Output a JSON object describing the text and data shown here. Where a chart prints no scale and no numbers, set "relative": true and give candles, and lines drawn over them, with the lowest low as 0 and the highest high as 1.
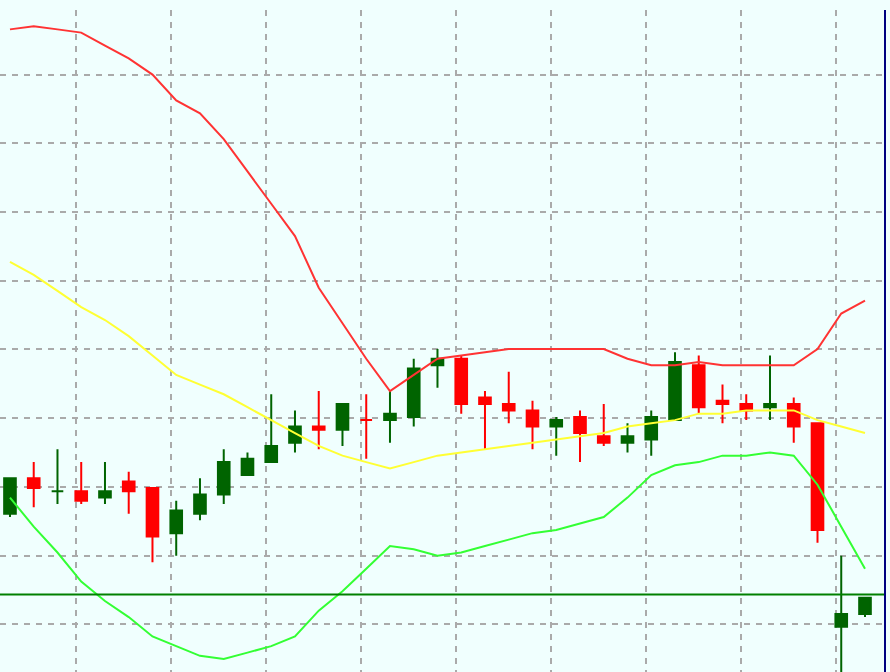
{
  "chart_data": {
    "type": "candlestick",
    "relative": true,
    "grid": true,
    "tick_labels": false,
    "categories": [
      null,
      null,
      null,
      null,
      null,
      null,
      null,
      null,
      null,
      null,
      null,
      null,
      null,
      null,
      null,
      null,
      null,
      null,
      null,
      null,
      null,
      null,
      null,
      null,
      null,
      null,
      null,
      null,
      null,
      null,
      null,
      null,
      null,
      null,
      null,
      null,
      null
    ],
    "ohlc": [
      [
        0.49,
        0.6,
        0.48,
        0.6
      ],
      [
        0.6,
        0.65,
        0.51,
        0.57
      ],
      [
        0.56,
        0.69,
        0.52,
        0.56
      ],
      [
        0.56,
        0.65,
        0.52,
        0.53
      ],
      [
        0.54,
        0.65,
        0.52,
        0.56
      ],
      [
        0.59,
        0.62,
        0.49,
        0.56
      ],
      [
        0.57,
        0.57,
        0.34,
        0.42
      ],
      [
        0.43,
        0.53,
        0.36,
        0.5
      ],
      [
        0.49,
        0.6,
        0.47,
        0.55
      ],
      [
        0.55,
        0.69,
        0.52,
        0.65
      ],
      [
        0.61,
        0.68,
        0.61,
        0.66
      ],
      [
        0.65,
        0.86,
        0.65,
        0.7
      ],
      [
        0.71,
        0.81,
        0.68,
        0.76
      ],
      [
        0.76,
        0.87,
        0.69,
        0.75
      ],
      [
        0.75,
        0.83,
        0.7,
        0.83
      ],
      [
        0.78,
        0.86,
        0.66,
        0.78
      ],
      [
        0.78,
        0.87,
        0.71,
        0.8
      ],
      [
        0.79,
        0.97,
        0.76,
        0.94
      ],
      [
        0.95,
        1.0,
        0.88,
        0.97
      ],
      [
        0.97,
        0.98,
        0.8,
        0.83
      ],
      [
        0.85,
        0.87,
        0.69,
        0.83
      ],
      [
        0.83,
        0.93,
        0.77,
        0.81
      ],
      [
        0.81,
        0.84,
        0.69,
        0.76
      ],
      [
        0.76,
        0.79,
        0.67,
        0.78
      ],
      [
        0.79,
        0.81,
        0.65,
        0.74
      ],
      [
        0.73,
        0.83,
        0.7,
        0.71
      ],
      [
        0.71,
        0.77,
        0.68,
        0.73
      ],
      [
        0.72,
        0.81,
        0.67,
        0.79
      ],
      [
        0.78,
        0.99,
        0.78,
        0.96
      ],
      [
        0.95,
        0.98,
        0.8,
        0.82
      ],
      [
        0.84,
        0.89,
        0.77,
        0.83
      ],
      [
        0.83,
        0.86,
        0.78,
        0.81
      ],
      [
        0.82,
        0.98,
        0.78,
        0.83
      ],
      [
        0.83,
        0.85,
        0.71,
        0.76
      ],
      [
        0.77,
        0.77,
        0.4,
        0.44
      ],
      [
        0.14,
        0.36,
        0.0,
        0.18
      ],
      [
        0.18,
        0.23,
        0.17,
        0.23
      ]
    ],
    "colors": [
      "#006400",
      "#ff0000",
      "#006400",
      "#ff0000",
      "#006400",
      "#ff0000",
      "#ff0000",
      "#006400",
      "#006400",
      "#006400",
      "#006400",
      "#006400",
      "#006400",
      "#ff0000",
      "#006400",
      "#ff0000",
      "#006400",
      "#006400",
      "#006400",
      "#ff0000",
      "#ff0000",
      "#ff0000",
      "#ff0000",
      "#006400",
      "#ff0000",
      "#ff0000",
      "#006400",
      "#006400",
      "#006400",
      "#ff0000",
      "#ff0000",
      "#ff0000",
      "#006400",
      "#ff0000",
      "#ff0000",
      "#006400",
      "#006400"
    ],
    "series": [
      {
        "type": "line",
        "color": "#ff3333",
        "values": [
          1.99,
          2.0,
          1.99,
          1.98,
          1.94,
          1.9,
          1.85,
          1.77,
          1.73,
          1.65,
          1.55,
          1.45,
          1.35,
          1.19,
          1.08,
          0.97,
          0.87,
          0.92,
          0.97,
          0.98,
          0.99,
          1.0,
          1.0,
          1.0,
          1.0,
          1.0,
          0.97,
          0.95,
          0.95,
          0.96,
          0.95,
          0.95,
          0.95,
          0.95,
          1.0,
          1.11,
          1.15
        ]
      },
      {
        "type": "line",
        "color": "#ffff33",
        "values": [
          1.27,
          1.23,
          1.18,
          1.13,
          1.09,
          1.04,
          0.98,
          0.92,
          0.89,
          0.86,
          0.82,
          0.78,
          0.74,
          0.7,
          0.67,
          0.65,
          0.63,
          0.65,
          0.67,
          0.68,
          0.69,
          0.7,
          0.71,
          0.72,
          0.73,
          0.74,
          0.76,
          0.77,
          0.78,
          0.8,
          0.8,
          0.81,
          0.81,
          0.81,
          0.78,
          0.76,
          0.74
        ]
      },
      {
        "type": "line",
        "color": "#33ff33",
        "values": [
          0.54,
          0.45,
          0.37,
          0.28,
          0.22,
          0.17,
          0.11,
          0.08,
          0.05,
          0.04,
          0.06,
          0.08,
          0.11,
          0.19,
          0.25,
          0.32,
          0.39,
          0.38,
          0.36,
          0.37,
          0.39,
          0.41,
          0.43,
          0.44,
          0.46,
          0.48,
          0.54,
          0.61,
          0.64,
          0.65,
          0.67,
          0.67,
          0.68,
          0.67,
          0.58,
          0.45,
          0.32
        ]
      }
    ],
    "ref_lines": [
      {
        "axis": "y",
        "value": 0.24,
        "color": "#008000"
      }
    ]
  }
}
